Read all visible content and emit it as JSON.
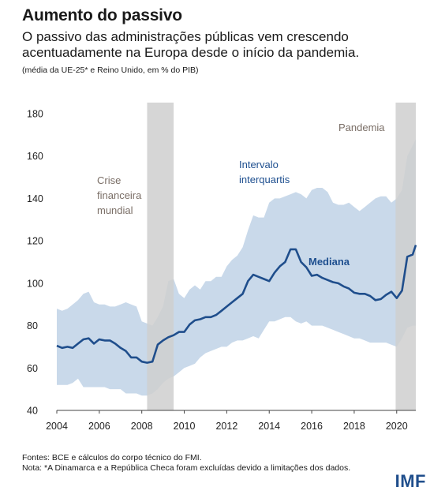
{
  "header": {
    "title": "Aumento do passivo",
    "subtitle": "O passivo das administrações públicas vem crescendo acentuadamente na Europa desde o início da pandemia.",
    "note": "(média da UE-25* e Reino Unido, em % do PIB)"
  },
  "footer": {
    "sources": "Fontes: BCE e cálculos do corpo técnico do FMI.",
    "note": "Nota: *A Dinamarca e a República Checa foram excluídas devido a limitações dos dados.",
    "logo": "IMF"
  },
  "colors": {
    "band": "#c9d9ea",
    "median": "#1f4e8c",
    "shade": "#cfcfcf",
    "text": "#1a1a1a"
  },
  "chart_data": {
    "type": "line",
    "title": "Aumento do passivo",
    "xlabel": "",
    "ylabel": "",
    "xlim": [
      2004.0,
      2020.9
    ],
    "ylim": [
      40,
      180
    ],
    "yticks": [
      40,
      60,
      80,
      100,
      120,
      140,
      160,
      180
    ],
    "xticks": [
      2004,
      2006,
      2008,
      2010,
      2012,
      2014,
      2016,
      2018,
      2020
    ],
    "grid": false,
    "shaded_periods": [
      {
        "label": "Crise financeira mundial",
        "label_lines": [
          "Crise",
          "financeira",
          "mundial"
        ],
        "start": 2008.25,
        "end": 2009.5
      },
      {
        "label": "Pandemia",
        "label_lines": [
          "Pandemia"
        ],
        "start": 2019.95,
        "end": 2020.9
      }
    ],
    "band_labels": [
      "Intervalo",
      "interquartis"
    ],
    "series": [
      {
        "name": "Mediana",
        "role": "median",
        "x": [
          2004.0,
          2004.25,
          2004.5,
          2004.75,
          2005.0,
          2005.25,
          2005.5,
          2005.75,
          2006.0,
          2006.25,
          2006.5,
          2006.75,
          2007.0,
          2007.25,
          2007.5,
          2007.75,
          2008.0,
          2008.25,
          2008.5,
          2008.75,
          2009.0,
          2009.25,
          2009.5,
          2009.75,
          2010.0,
          2010.25,
          2010.5,
          2010.75,
          2011.0,
          2011.25,
          2011.5,
          2011.75,
          2012.0,
          2012.25,
          2012.5,
          2012.75,
          2013.0,
          2013.25,
          2013.5,
          2013.75,
          2014.0,
          2014.25,
          2014.5,
          2014.75,
          2015.0,
          2015.25,
          2015.5,
          2015.75,
          2016.0,
          2016.25,
          2016.5,
          2016.75,
          2017.0,
          2017.25,
          2017.5,
          2017.75,
          2018.0,
          2018.25,
          2018.5,
          2018.75,
          2019.0,
          2019.25,
          2019.5,
          2019.75,
          2020.0,
          2020.25,
          2020.5,
          2020.75,
          2020.9
        ],
        "values": [
          70.5,
          69.5,
          70,
          69.5,
          71.5,
          73.5,
          74,
          71.5,
          73.5,
          73,
          73,
          71.5,
          69.5,
          68,
          65,
          65,
          63,
          62.5,
          63,
          71,
          73,
          74.5,
          75.5,
          77,
          77,
          80.5,
          82.5,
          83,
          84,
          84,
          85,
          87,
          89,
          91,
          93,
          95,
          101,
          104,
          103,
          102,
          101,
          105,
          108,
          110,
          116,
          116,
          110,
          107.5,
          103.5,
          104,
          102.5,
          101.5,
          100.5,
          100,
          98.5,
          97.5,
          95.5,
          95,
          95,
          94,
          92,
          92.5,
          94.5,
          96,
          93,
          96.5,
          112.5,
          113.5,
          118
        ]
      },
      {
        "name": "Percentil 75",
        "role": "band_upper",
        "x": [
          2004.0,
          2004.25,
          2004.5,
          2004.75,
          2005.0,
          2005.25,
          2005.5,
          2005.75,
          2006.0,
          2006.25,
          2006.5,
          2006.75,
          2007.0,
          2007.25,
          2007.5,
          2007.75,
          2008.0,
          2008.25,
          2008.5,
          2008.75,
          2009.0,
          2009.25,
          2009.5,
          2009.75,
          2010.0,
          2010.25,
          2010.5,
          2010.75,
          2011.0,
          2011.25,
          2011.5,
          2011.75,
          2012.0,
          2012.25,
          2012.5,
          2012.75,
          2013.0,
          2013.25,
          2013.5,
          2013.75,
          2014.0,
          2014.25,
          2014.5,
          2014.75,
          2015.0,
          2015.25,
          2015.5,
          2015.75,
          2016.0,
          2016.25,
          2016.5,
          2016.75,
          2017.0,
          2017.25,
          2017.5,
          2017.75,
          2018.0,
          2018.25,
          2018.5,
          2018.75,
          2019.0,
          2019.25,
          2019.5,
          2019.75,
          2020.0,
          2020.25,
          2020.5,
          2020.75,
          2020.9
        ],
        "values": [
          88,
          87,
          88,
          90,
          92,
          95,
          96,
          91,
          90,
          90,
          89,
          89,
          90,
          91,
          90,
          89,
          82,
          81,
          80,
          84,
          89,
          101,
          102,
          95,
          93,
          97,
          99,
          97,
          101,
          101,
          103,
          103,
          108,
          111,
          113,
          117,
          125,
          132,
          131,
          131,
          138,
          140,
          140,
          141,
          142,
          143,
          142,
          140,
          144,
          145,
          145,
          143,
          138,
          137,
          137,
          138,
          136,
          134,
          136,
          138,
          140,
          141,
          141,
          138,
          140,
          144,
          160,
          165,
          168
        ]
      },
      {
        "name": "Percentil 25",
        "role": "band_lower",
        "x": [
          2004.0,
          2004.25,
          2004.5,
          2004.75,
          2005.0,
          2005.25,
          2005.5,
          2005.75,
          2006.0,
          2006.25,
          2006.5,
          2006.75,
          2007.0,
          2007.25,
          2007.5,
          2007.75,
          2008.0,
          2008.25,
          2008.5,
          2008.75,
          2009.0,
          2009.25,
          2009.5,
          2009.75,
          2010.0,
          2010.25,
          2010.5,
          2010.75,
          2011.0,
          2011.25,
          2011.5,
          2011.75,
          2012.0,
          2012.25,
          2012.5,
          2012.75,
          2013.0,
          2013.25,
          2013.5,
          2013.75,
          2014.0,
          2014.25,
          2014.5,
          2014.75,
          2015.0,
          2015.25,
          2015.5,
          2015.75,
          2016.0,
          2016.25,
          2016.5,
          2016.75,
          2017.0,
          2017.25,
          2017.5,
          2017.75,
          2018.0,
          2018.25,
          2018.5,
          2018.75,
          2019.0,
          2019.25,
          2019.5,
          2019.75,
          2020.0,
          2020.25,
          2020.5,
          2020.75,
          2020.9
        ],
        "values": [
          52,
          52,
          52,
          53,
          55,
          51,
          51,
          51,
          51,
          51,
          50,
          50,
          50,
          48,
          48,
          48,
          47,
          47,
          48,
          50,
          53,
          55,
          56,
          58,
          60,
          61,
          62,
          65,
          67,
          68,
          69,
          70,
          70,
          72,
          73,
          73,
          74,
          75,
          74,
          78,
          82,
          82,
          83,
          84,
          84,
          82,
          81,
          82,
          80,
          80,
          80,
          79,
          78,
          77,
          76,
          75,
          74,
          74,
          73,
          72,
          72,
          72,
          72,
          71,
          70,
          74,
          79,
          80,
          80
        ]
      }
    ]
  }
}
